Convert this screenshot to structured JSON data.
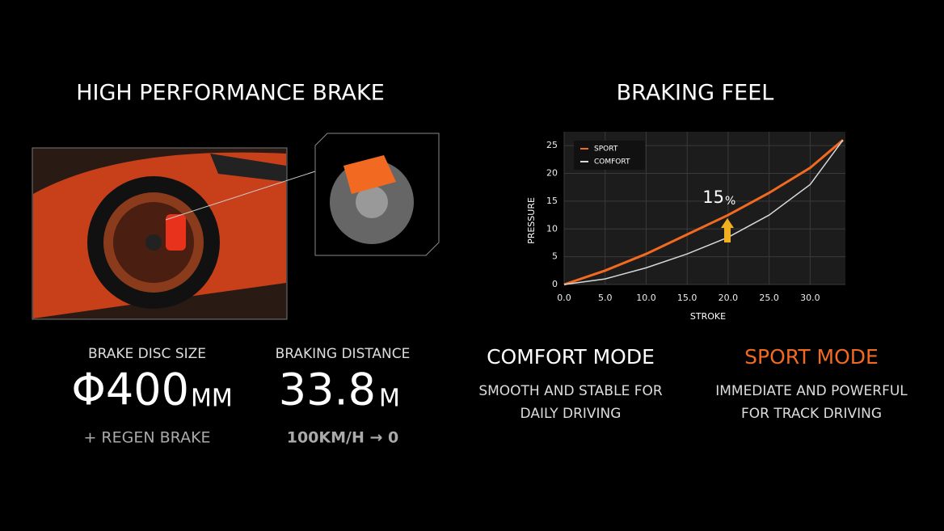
{
  "left": {
    "title": "HIGH PERFORMANCE BRAKE",
    "disc": {
      "label": "BRAKE DISC SIZE",
      "value": "Φ400",
      "unit": "MM",
      "note": "+ REGEN BRAKE"
    },
    "distance": {
      "label": "BRAKING DISTANCE",
      "value": "33.8",
      "unit": "M",
      "note": "100KM/H → 0"
    }
  },
  "right": {
    "title": "BRAKING FEEL",
    "comfort": {
      "title": "COMFORT MODE",
      "lines": [
        "SMOOTH AND STABLE FOR",
        "DAILY DRIVING"
      ]
    },
    "sport": {
      "title": "SPORT MODE",
      "lines": [
        "IMMEDIATE AND POWERFUL",
        "FOR TRACK DRIVING"
      ]
    }
  },
  "chart_data": {
    "type": "line",
    "x_label": "STROKE",
    "y_label": "PRESSURE",
    "annotation_value": "15",
    "annotation_unit": "%",
    "x": [
      0,
      5,
      10,
      15,
      20,
      25,
      30,
      34
    ],
    "series": [
      {
        "name": "SPORT",
        "color": "#f26a21",
        "values": [
          0,
          2.5,
          5.5,
          9,
          12.5,
          16.5,
          21,
          26
        ]
      },
      {
        "name": "COMFORT",
        "color": "#d8d8d8",
        "values": [
          0,
          1,
          3,
          5.5,
          8.5,
          12.5,
          18,
          26
        ]
      }
    ],
    "xlim": [
      0,
      34.3
    ],
    "ylim": [
      0,
      27.5
    ],
    "xticks": [
      {
        "value": 0,
        "label": "0.0"
      },
      {
        "value": 5,
        "label": "5.0"
      },
      {
        "value": 10,
        "label": "10.0"
      },
      {
        "value": 15,
        "label": "15.0"
      },
      {
        "value": 20,
        "label": "20.0"
      },
      {
        "value": 25,
        "label": "25.0"
      },
      {
        "value": 30,
        "label": "30.0"
      }
    ],
    "yticks": [
      0,
      5,
      10,
      15,
      20,
      25
    ],
    "grid": true
  }
}
